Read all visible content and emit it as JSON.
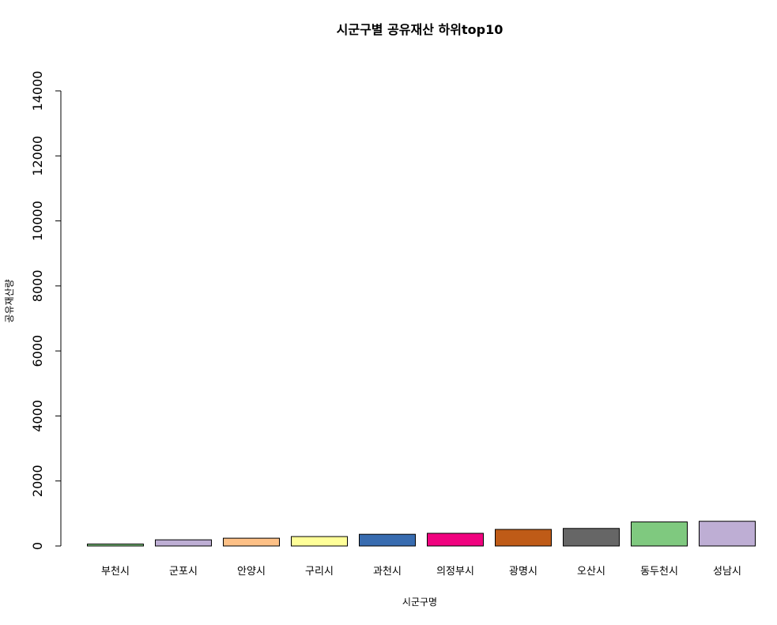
{
  "chart_data": {
    "type": "bar",
    "title": "시군구별 공유재산 하위top10",
    "xlabel": "시군구명",
    "ylabel": "공유재산량",
    "ylim": [
      0,
      14000
    ],
    "yticks": [
      0,
      2000,
      4000,
      6000,
      8000,
      10000,
      12000,
      14000
    ],
    "grid": false,
    "categories": [
      "부천시",
      "군포시",
      "안양시",
      "구리시",
      "과천시",
      "의정부시",
      "광명시",
      "오산시",
      "동두천시",
      "성남시"
    ],
    "values": [
      60,
      190,
      240,
      290,
      360,
      390,
      510,
      540,
      740,
      760
    ],
    "colors": [
      "#7FC97F",
      "#BEAED4",
      "#FDC086",
      "#FFFF99",
      "#386CB0",
      "#F0027F",
      "#BF5B17",
      "#666666",
      "#7FC97F",
      "#BEAED4"
    ]
  }
}
